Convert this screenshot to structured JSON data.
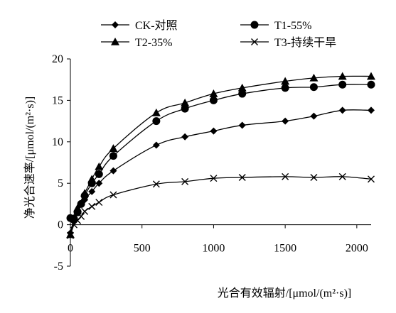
{
  "chart_data": {
    "type": "line",
    "xlabel": "光合有效辐射/[μmol/(m²·s)]",
    "ylabel": "净光合速率/[μmol/(m²·s)]",
    "xlim": [
      0,
      2100
    ],
    "ylim": [
      -5,
      20
    ],
    "xticks": [
      "0",
      "500",
      "1000",
      "1500",
      "2000"
    ],
    "yticks": [
      "-5",
      "0",
      "5",
      "10",
      "15",
      "20"
    ],
    "grid": false,
    "legend_position": "top",
    "series": [
      {
        "name": "CK-对照",
        "marker": "diamond",
        "x": [
          0,
          25,
          50,
          100,
          150,
          200,
          300,
          600,
          800,
          1000,
          1200,
          1500,
          1700,
          1900,
          2100
        ],
        "y": [
          -1.0,
          0.5,
          1.5,
          3.0,
          4.0,
          5.0,
          6.5,
          9.6,
          10.6,
          11.3,
          12.0,
          12.5,
          13.1,
          13.8,
          13.8
        ]
      },
      {
        "name": "T1-55%",
        "marker": "circle",
        "x": [
          0,
          25,
          50,
          75,
          100,
          150,
          200,
          300,
          600,
          800,
          1000,
          1200,
          1500,
          1700,
          1900,
          2100
        ],
        "y": [
          0.8,
          0.7,
          1.5,
          2.5,
          3.5,
          5.0,
          6.1,
          8.3,
          12.5,
          14.0,
          15.0,
          15.8,
          16.5,
          16.6,
          16.9,
          16.9
        ]
      },
      {
        "name": "T2-35%",
        "marker": "triangle",
        "x": [
          0,
          25,
          50,
          100,
          150,
          200,
          300,
          600,
          800,
          1000,
          1200,
          1500,
          1700,
          1900,
          2100
        ],
        "y": [
          -1.2,
          0.8,
          2.0,
          3.8,
          5.5,
          7.0,
          9.2,
          13.5,
          14.7,
          15.8,
          16.5,
          17.3,
          17.7,
          17.9,
          17.9
        ]
      },
      {
        "name": "T3-持续干旱",
        "marker": "x",
        "x": [
          0,
          25,
          50,
          75,
          100,
          150,
          200,
          300,
          600,
          800,
          1000,
          1200,
          1500,
          1700,
          1900,
          2100
        ],
        "y": [
          -1.3,
          0.0,
          0.5,
          1.0,
          1.6,
          2.2,
          2.7,
          3.6,
          4.9,
          5.2,
          5.6,
          5.7,
          5.8,
          5.7,
          5.8,
          5.5
        ]
      }
    ]
  }
}
